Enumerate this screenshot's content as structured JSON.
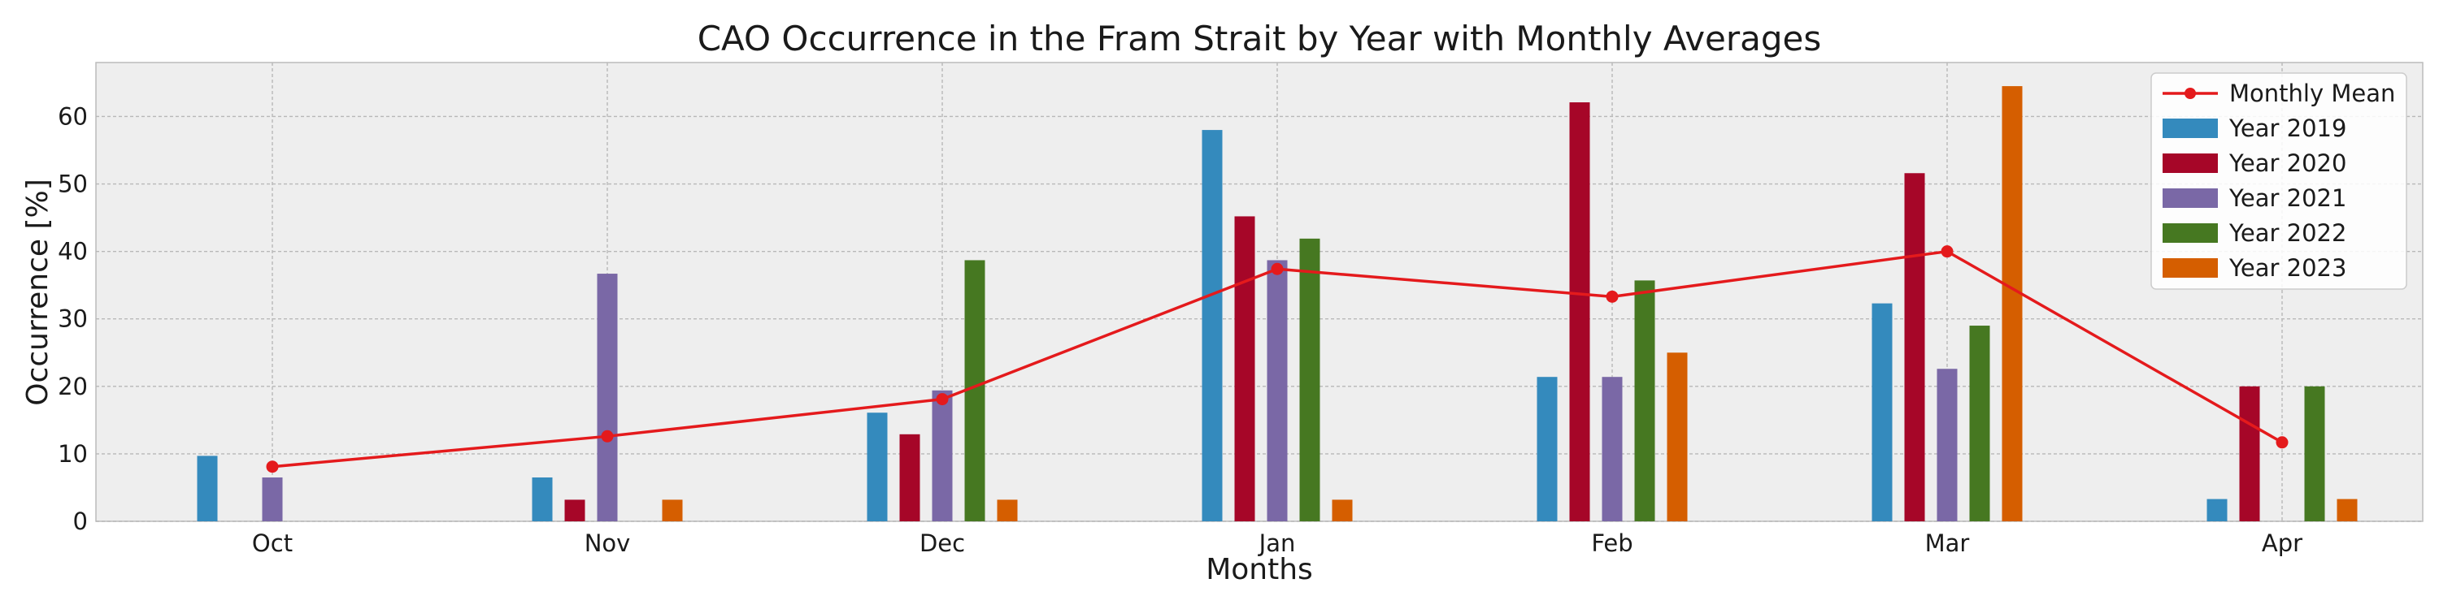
{
  "chart_data": {
    "type": "bar",
    "title": "CAO Occurrence in the Fram Strait by Year with Monthly Averages",
    "xlabel": "Months",
    "ylabel": "Occurrence [%]",
    "ylim": [
      0,
      68
    ],
    "yticks": [
      0,
      10,
      20,
      30,
      40,
      50,
      60
    ],
    "grid": true,
    "legend_position": "top-right",
    "categories": [
      "Oct",
      "Nov",
      "Dec",
      "Jan",
      "Feb",
      "Mar",
      "Apr"
    ],
    "series": [
      {
        "name": "Year 2019",
        "color": "#348ABD",
        "values": [
          9.7,
          6.5,
          16.1,
          58.0,
          21.4,
          32.3,
          3.3
        ]
      },
      {
        "name": "Year 2020",
        "color": "#A60628",
        "values": [
          0,
          3.2,
          12.9,
          45.2,
          62.1,
          51.6,
          20.0
        ]
      },
      {
        "name": "Year 2021",
        "color": "#7A68A6",
        "values": [
          6.5,
          36.7,
          19.4,
          38.7,
          21.4,
          22.6,
          0
        ]
      },
      {
        "name": "Year 2022",
        "color": "#467821",
        "values": [
          0,
          0,
          38.7,
          41.9,
          35.7,
          29.0,
          20.0
        ]
      },
      {
        "name": "Year 2023",
        "color": "#D55E00",
        "values": [
          0,
          3.2,
          3.2,
          3.2,
          25.0,
          64.5,
          3.3
        ]
      }
    ],
    "line": {
      "name": "Monthly Mean",
      "color": "#E41A1C",
      "values": [
        8.1,
        12.6,
        18.1,
        37.4,
        33.3,
        40.0,
        11.7
      ]
    }
  }
}
